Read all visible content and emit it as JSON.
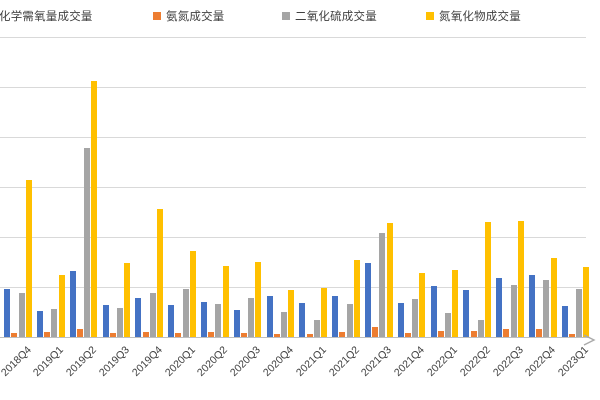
{
  "chart_data": {
    "type": "bar",
    "title": "",
    "xlabel": "",
    "ylabel": "",
    "ylim": [
      0,
      600
    ],
    "gridline_interval": 100,
    "grid": true,
    "y_axis_tick_labels_visible": false,
    "legend_position": "top",
    "categories": [
      "2018Q4",
      "2019Q1",
      "2019Q2",
      "2019Q3",
      "2019Q4",
      "2020Q1",
      "2020Q2",
      "2020Q3",
      "2020Q4",
      "2021Q1",
      "2021Q2",
      "2021Q3",
      "2021Q4",
      "2022Q1",
      "2022Q2",
      "2022Q3",
      "2022Q4",
      "2023Q1"
    ],
    "series": [
      {
        "name": "化学需氧量成交量",
        "color": "#4472C4",
        "values": [
          96,
          52,
          132,
          64,
          78,
          64,
          70,
          54,
          82,
          68,
          82,
          148,
          68,
          102,
          94,
          118,
          124,
          62
        ]
      },
      {
        "name": "氨氮成交量",
        "color": "#ED7D31",
        "values": [
          8,
          10,
          16,
          8,
          10,
          8,
          10,
          8,
          6,
          6,
          10,
          20,
          8,
          12,
          12,
          16,
          16,
          6
        ]
      },
      {
        "name": "二氧化硫成交量",
        "color": "#A5A5A5",
        "values": [
          88,
          56,
          378,
          58,
          88,
          96,
          66,
          78,
          50,
          34,
          66,
          208,
          76,
          48,
          34,
          104,
          114,
          96
        ]
      },
      {
        "name": "氮氧化物成交量",
        "color": "#FFC000",
        "values": [
          314,
          124,
          512,
          148,
          256,
          172,
          142,
          150,
          94,
          98,
          154,
          228,
          128,
          134,
          230,
          232,
          158,
          140
        ]
      }
    ]
  },
  "colors": {
    "gridline": "#d9d9d9",
    "axis_line": "#bfbfbf",
    "text": "#404040",
    "arrow": "#aaaaaa"
  }
}
